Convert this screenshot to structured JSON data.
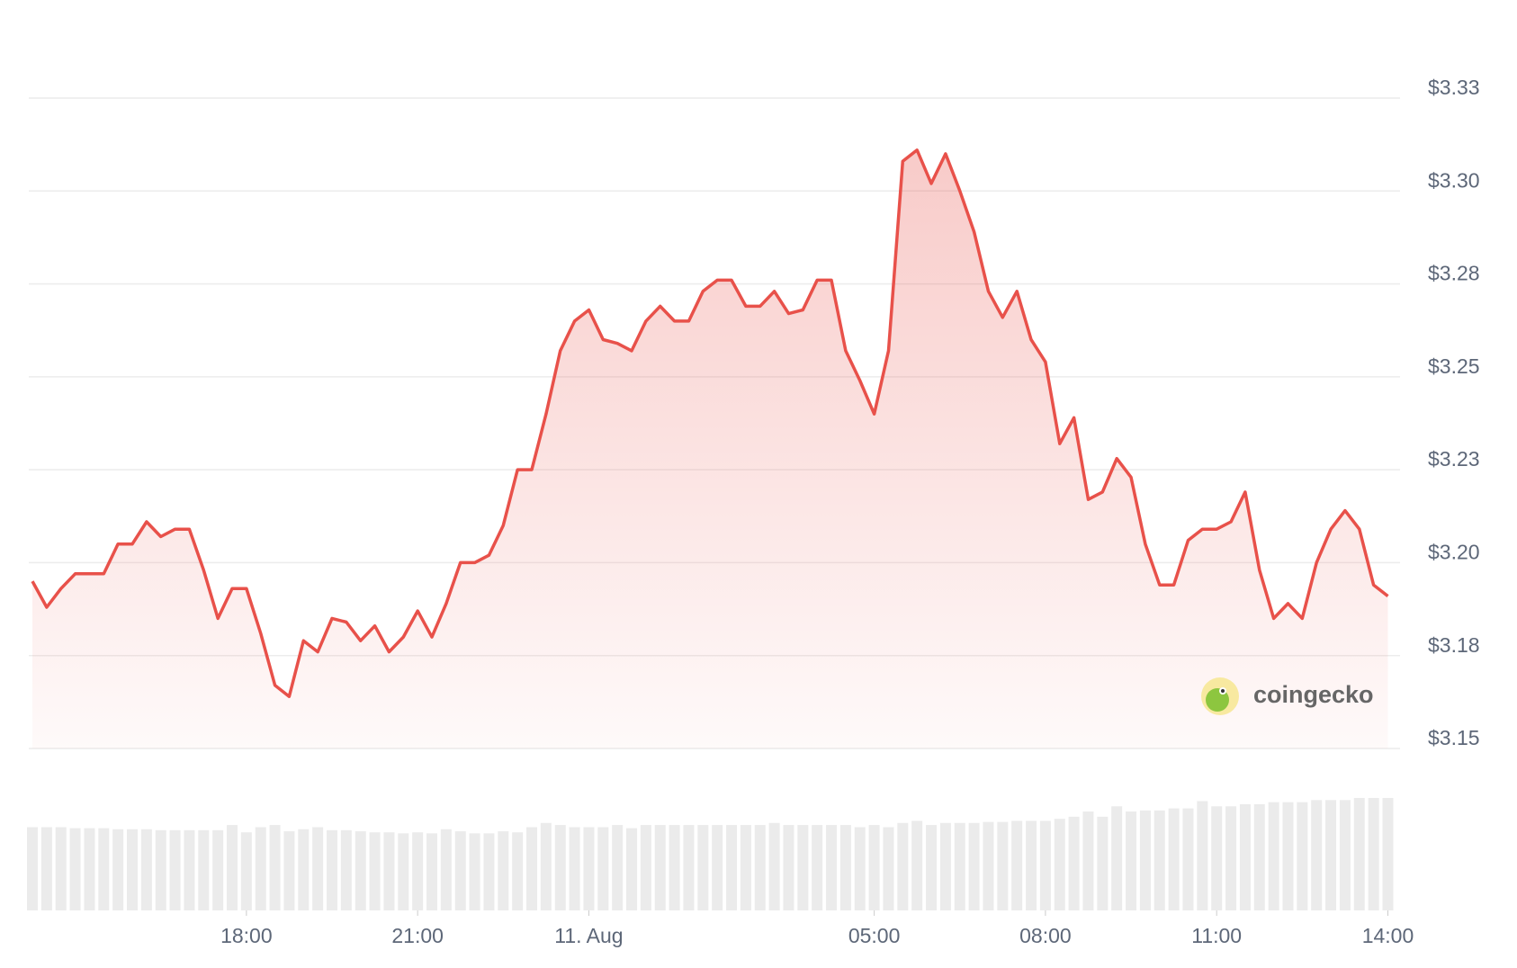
{
  "chart_data": {
    "type": "line",
    "color": "#e8514a",
    "grid": true,
    "x": [
      -9.75,
      -9.5,
      -9.25,
      -9,
      -8.75,
      -8.5,
      -8.25,
      -8,
      -7.75,
      -7.5,
      -7.25,
      -7,
      -6.75,
      -6.5,
      -6.25,
      -6,
      -5.75,
      -5.5,
      -5.25,
      -5,
      -4.75,
      -4.5,
      -4.25,
      -4,
      -3.75,
      -3.5,
      -3.25,
      -3,
      -2.75,
      -2.5,
      -2.25,
      -2,
      -1.75,
      -1.5,
      -1.25,
      -1,
      -0.75,
      -0.5,
      -0.25,
      0,
      0.25,
      0.5,
      0.75,
      1,
      1.25,
      1.5,
      1.75,
      2,
      2.25,
      2.5,
      2.75,
      3,
      3.25,
      3.5,
      3.75,
      4,
      4.25,
      4.5,
      4.75,
      5,
      5.25,
      5.5,
      5.75,
      6,
      6.25,
      6.5,
      6.75,
      7,
      7.25,
      7.5,
      7.75,
      8,
      8.25,
      8.5,
      8.75,
      9,
      9.25,
      9.5,
      9.75,
      10,
      10.25,
      10.5,
      10.75,
      11,
      11.25,
      11.5,
      11.75,
      12,
      12.25,
      12.5,
      12.75,
      13,
      13.25,
      13.5,
      13.75,
      14
    ],
    "values": [
      3.195,
      3.188,
      3.193,
      3.197,
      3.197,
      3.197,
      3.205,
      3.205,
      3.211,
      3.207,
      3.209,
      3.209,
      3.198,
      3.185,
      3.193,
      3.193,
      3.181,
      3.167,
      3.164,
      3.179,
      3.176,
      3.185,
      3.184,
      3.179,
      3.183,
      3.176,
      3.18,
      3.187,
      3.18,
      3.189,
      3.2,
      3.2,
      3.202,
      3.21,
      3.225,
      3.225,
      3.24,
      3.257,
      3.265,
      3.268,
      3.26,
      3.259,
      3.257,
      3.265,
      3.269,
      3.265,
      3.265,
      3.273,
      3.276,
      3.276,
      3.269,
      3.269,
      3.273,
      3.267,
      3.268,
      3.276,
      3.276,
      3.257,
      3.249,
      3.24,
      3.257,
      3.308,
      3.311,
      3.302,
      3.31,
      3.3,
      3.289,
      3.273,
      3.266,
      3.273,
      3.26,
      3.254,
      3.232,
      3.239,
      3.217,
      3.219,
      3.228,
      3.223,
      3.205,
      3.194,
      3.194,
      3.206,
      3.209,
      3.209,
      3.211,
      3.219,
      3.198,
      3.185,
      3.189,
      3.185,
      3.2,
      3.209,
      3.214,
      3.209,
      3.194,
      3.191
    ],
    "volume": [
      80,
      80,
      80,
      79,
      79,
      79,
      78,
      78,
      78,
      77,
      77,
      77,
      77,
      77,
      82,
      75,
      80,
      82,
      76,
      78,
      80,
      77,
      77,
      76,
      75,
      75,
      74,
      75,
      74,
      78,
      76,
      74,
      74,
      76,
      75,
      80,
      84,
      82,
      80,
      80,
      80,
      82,
      79,
      82,
      82,
      82,
      82,
      82,
      82,
      82,
      82,
      82,
      84,
      82,
      82,
      82,
      82,
      82,
      80,
      82,
      80,
      84,
      86,
      82,
      84,
      84,
      84,
      85,
      85,
      86,
      86,
      86,
      88,
      90,
      95,
      90,
      100,
      95,
      96,
      96,
      98,
      98,
      105,
      100,
      100,
      102,
      102,
      104,
      104,
      104,
      106,
      106,
      106,
      108,
      108,
      108
    ],
    "xlim": [
      -9.75,
      14.15
    ],
    "xticks": [
      {
        "value": -6,
        "label": "18:00"
      },
      {
        "value": -3,
        "label": "21:00"
      },
      {
        "value": 0,
        "label": "11. Aug"
      },
      {
        "value": 5,
        "label": "05:00"
      },
      {
        "value": 8,
        "label": "08:00"
      },
      {
        "value": 11,
        "label": "11:00"
      },
      {
        "value": 14,
        "label": "14:00"
      }
    ],
    "ylim": [
      3.15,
      3.325
    ],
    "yticks": [
      {
        "value": 3.15,
        "label": "$3.15"
      },
      {
        "value": 3.175,
        "label": "$3.18"
      },
      {
        "value": 3.2,
        "label": "$3.20"
      },
      {
        "value": 3.225,
        "label": "$3.23"
      },
      {
        "value": 3.25,
        "label": "$3.25"
      },
      {
        "value": 3.275,
        "label": "$3.28"
      },
      {
        "value": 3.3,
        "label": "$3.30"
      },
      {
        "value": 3.325,
        "label": "$3.33"
      }
    ],
    "watermark": "coingecko"
  }
}
